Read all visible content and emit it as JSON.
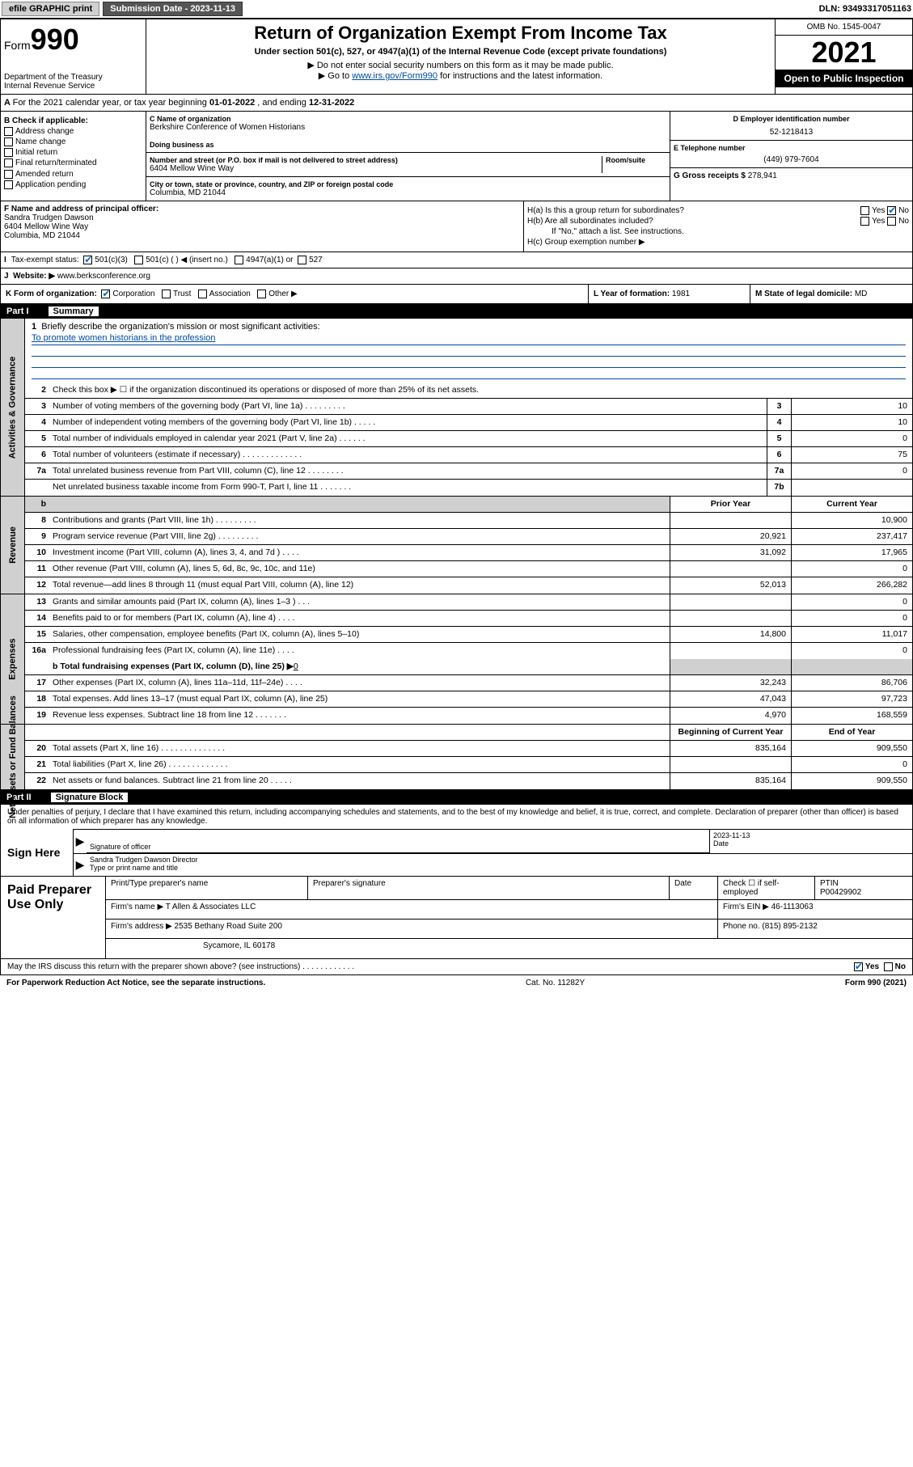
{
  "topbar": {
    "efile": "efile GRAPHIC print",
    "submission_label": "Submission Date - 2023-11-13",
    "dln_label": "DLN: 93493317051163"
  },
  "header": {
    "form_label": "Form",
    "form_number": "990",
    "dept": "Department of the Treasury",
    "irs": "Internal Revenue Service",
    "title": "Return of Organization Exempt From Income Tax",
    "subtitle": "Under section 501(c), 527, or 4947(a)(1) of the Internal Revenue Code (except private foundations)",
    "note1": "▶ Do not enter social security numbers on this form as it may be made public.",
    "note2_pre": "▶ Go to ",
    "note2_link": "www.irs.gov/Form990",
    "note2_post": " for instructions and the latest information.",
    "omb": "OMB No. 1545-0047",
    "year": "2021",
    "inspection": "Open to Public Inspection"
  },
  "period": {
    "text_pre": "For the 2021 calendar year, or tax year beginning ",
    "begin": "01-01-2022",
    "text_mid": " , and ending ",
    "end": "12-31-2022"
  },
  "sectionB": {
    "label": "B Check if applicable:",
    "items": [
      "Address change",
      "Name change",
      "Initial return",
      "Final return/terminated",
      "Amended return",
      "Application pending"
    ]
  },
  "sectionC": {
    "name_label": "C Name of organization",
    "name": "Berkshire Conference of Women Historians",
    "dba_label": "Doing business as",
    "addr_label": "Number and street (or P.O. box if mail is not delivered to street address)",
    "room_label": "Room/suite",
    "addr": "6404 Mellow Wine Way",
    "city_label": "City or town, state or province, country, and ZIP or foreign postal code",
    "city": "Columbia, MD  21044"
  },
  "sectionD": {
    "label": "D Employer identification number",
    "value": "52-1218413"
  },
  "sectionE": {
    "label": "E Telephone number",
    "value": "(449) 979-7604"
  },
  "sectionG": {
    "label": "G Gross receipts $",
    "value": "278,941"
  },
  "sectionF": {
    "label": "F Name and address of principal officer:",
    "name": "Sandra Trudgen Dawson",
    "addr1": "6404 Mellow Wine Way",
    "addr2": "Columbia, MD  21044"
  },
  "sectionH": {
    "ha": "H(a)  Is this a group return for subordinates?",
    "hb": "H(b)  Are all subordinates included?",
    "hb_note": "If \"No,\" attach a list. See instructions.",
    "hc": "H(c)  Group exemption number ▶",
    "yes": "Yes",
    "no": "No"
  },
  "sectionI": {
    "label": "Tax-exempt status:",
    "opt1": "501(c)(3)",
    "opt2": "501(c) (   ) ◀ (insert no.)",
    "opt3": "4947(a)(1) or",
    "opt4": "527"
  },
  "sectionJ": {
    "label": "Website: ▶",
    "value": "www.berksconference.org"
  },
  "sectionK": {
    "label": "K Form of organization:",
    "corp": "Corporation",
    "trust": "Trust",
    "assoc": "Association",
    "other": "Other ▶"
  },
  "sectionL": {
    "label": "L Year of formation:",
    "value": "1981"
  },
  "sectionM": {
    "label": "M State of legal domicile:",
    "value": "MD"
  },
  "part1": {
    "header": "Part I",
    "title": "Summary",
    "line1_label": "Briefly describe the organization's mission or most significant activities:",
    "line1_value": "To promote women historians in the profession",
    "line2": "Check this box ▶ ☐  if the organization discontinued its operations or disposed of more than 25% of its net assets.",
    "lines": [
      {
        "n": "3",
        "txt": "Number of voting members of the governing body (Part VI, line 1a)  .   .   .   .   .   .   .   .   .",
        "box": "3",
        "val": "10"
      },
      {
        "n": "4",
        "txt": "Number of independent voting members of the governing body (Part VI, line 1b)   .   .   .   .   .",
        "box": "4",
        "val": "10"
      },
      {
        "n": "5",
        "txt": "Total number of individuals employed in calendar year 2021 (Part V, line 2a)   .   .   .   .   .   .",
        "box": "5",
        "val": "0"
      },
      {
        "n": "6",
        "txt": "Total number of volunteers (estimate if necessary)   .   .   .   .   .   .   .   .   .   .   .   .   .",
        "box": "6",
        "val": "75"
      },
      {
        "n": "7a",
        "txt": "Total unrelated business revenue from Part VIII, column (C), line 12   .   .   .   .   .   .   .   .",
        "box": "7a",
        "val": "0"
      },
      {
        "n": "",
        "txt": "Net unrelated business taxable income from Form 990-T, Part I, line 11   .   .   .   .   .   .   .",
        "box": "7b",
        "val": ""
      }
    ],
    "col_prior": "Prior Year",
    "col_current": "Current Year",
    "revenue": [
      {
        "n": "8",
        "txt": "Contributions and grants (Part VIII, line 1h)   .   .   .   .   .   .   .   .   .",
        "p": "",
        "c": "10,900"
      },
      {
        "n": "9",
        "txt": "Program service revenue (Part VIII, line 2g)   .   .   .   .   .   .   .   .   .",
        "p": "20,921",
        "c": "237,417"
      },
      {
        "n": "10",
        "txt": "Investment income (Part VIII, column (A), lines 3, 4, and 7d )   .   .   .   .",
        "p": "31,092",
        "c": "17,965"
      },
      {
        "n": "11",
        "txt": "Other revenue (Part VIII, column (A), lines 5, 6d, 8c, 9c, 10c, and 11e)",
        "p": "",
        "c": "0"
      },
      {
        "n": "12",
        "txt": "Total revenue—add lines 8 through 11 (must equal Part VIII, column (A), line 12)",
        "p": "52,013",
        "c": "266,282"
      }
    ],
    "expenses": [
      {
        "n": "13",
        "txt": "Grants and similar amounts paid (Part IX, column (A), lines 1–3 )   .   .   .",
        "p": "",
        "c": "0"
      },
      {
        "n": "14",
        "txt": "Benefits paid to or for members (Part IX, column (A), line 4)   .   .   .   .",
        "p": "",
        "c": "0"
      },
      {
        "n": "15",
        "txt": "Salaries, other compensation, employee benefits (Part IX, column (A), lines 5–10)",
        "p": "14,800",
        "c": "11,017"
      },
      {
        "n": "16a",
        "txt": "Professional fundraising fees (Part IX, column (A), line 11e)   .   .   .   .",
        "p": "",
        "c": "0"
      }
    ],
    "line16b_pre": "b  Total fundraising expenses (Part IX, column (D), line 25) ▶",
    "line16b_val": "0",
    "expenses2": [
      {
        "n": "17",
        "txt": "Other expenses (Part IX, column (A), lines 11a–11d, 11f–24e)   .   .   .   .",
        "p": "32,243",
        "c": "86,706"
      },
      {
        "n": "18",
        "txt": "Total expenses. Add lines 13–17 (must equal Part IX, column (A), line 25)",
        "p": "47,043",
        "c": "97,723"
      },
      {
        "n": "19",
        "txt": "Revenue less expenses. Subtract line 18 from line 12   .   .   .   .   .   .   .",
        "p": "4,970",
        "c": "168,559"
      }
    ],
    "col_begin": "Beginning of Current Year",
    "col_end": "End of Year",
    "netassets": [
      {
        "n": "20",
        "txt": "Total assets (Part X, line 16)   .   .   .   .   .   .   .   .   .   .   .   .   .   .",
        "p": "835,164",
        "c": "909,550"
      },
      {
        "n": "21",
        "txt": "Total liabilities (Part X, line 26)   .   .   .   .   .   .   .   .   .   .   .   .   .",
        "p": "",
        "c": "0"
      },
      {
        "n": "22",
        "txt": "Net assets or fund balances. Subtract line 21 from line 20   .   .   .   .   .",
        "p": "835,164",
        "c": "909,550"
      }
    ],
    "vert_activities": "Activities & Governance",
    "vert_revenue": "Revenue",
    "vert_expenses": "Expenses",
    "vert_netassets": "Net Assets or Fund Balances"
  },
  "part2": {
    "header": "Part II",
    "title": "Signature Block",
    "declaration": "Under penalties of perjury, I declare that I have examined this return, including accompanying schedules and statements, and to the best of my knowledge and belief, it is true, correct, and complete. Declaration of preparer (other than officer) is based on all information of which preparer has any knowledge.",
    "sign_here": "Sign Here",
    "sig_officer": "Signature of officer",
    "sig_date_label": "Date",
    "sig_date": "2023-11-13",
    "officer_name": "Sandra Trudgen Dawson  Director",
    "officer_name_label": "Type or print name and title",
    "paid": "Paid Preparer Use Only",
    "prep_name_label": "Print/Type preparer's name",
    "prep_sig_label": "Preparer's signature",
    "prep_date_label": "Date",
    "prep_check": "Check ☐ if self-employed",
    "ptin_label": "PTIN",
    "ptin": "P00429902",
    "firm_name_label": "Firm's name    ▶",
    "firm_name": "T Allen & Associates LLC",
    "firm_ein_label": "Firm's EIN ▶",
    "firm_ein": "46-1113063",
    "firm_addr_label": "Firm's address ▶",
    "firm_addr1": "2535 Bethany Road Suite 200",
    "firm_addr2": "Sycamore, IL  60178",
    "phone_label": "Phone no.",
    "phone": "(815) 895-2132",
    "discuss": "May the IRS discuss this return with the preparer shown above? (see instructions)   .   .   .   .   .   .   .   .   .   .   .   .",
    "discuss_yes": "Yes",
    "discuss_no": "No"
  },
  "footer": {
    "paperwork": "For Paperwork Reduction Act Notice, see the separate instructions.",
    "catno": "Cat. No. 11282Y",
    "formno": "Form 990 (2021)"
  },
  "colors": {
    "link": "#004ba0",
    "shade": "#d0d0d0",
    "check": "#0066cc"
  }
}
